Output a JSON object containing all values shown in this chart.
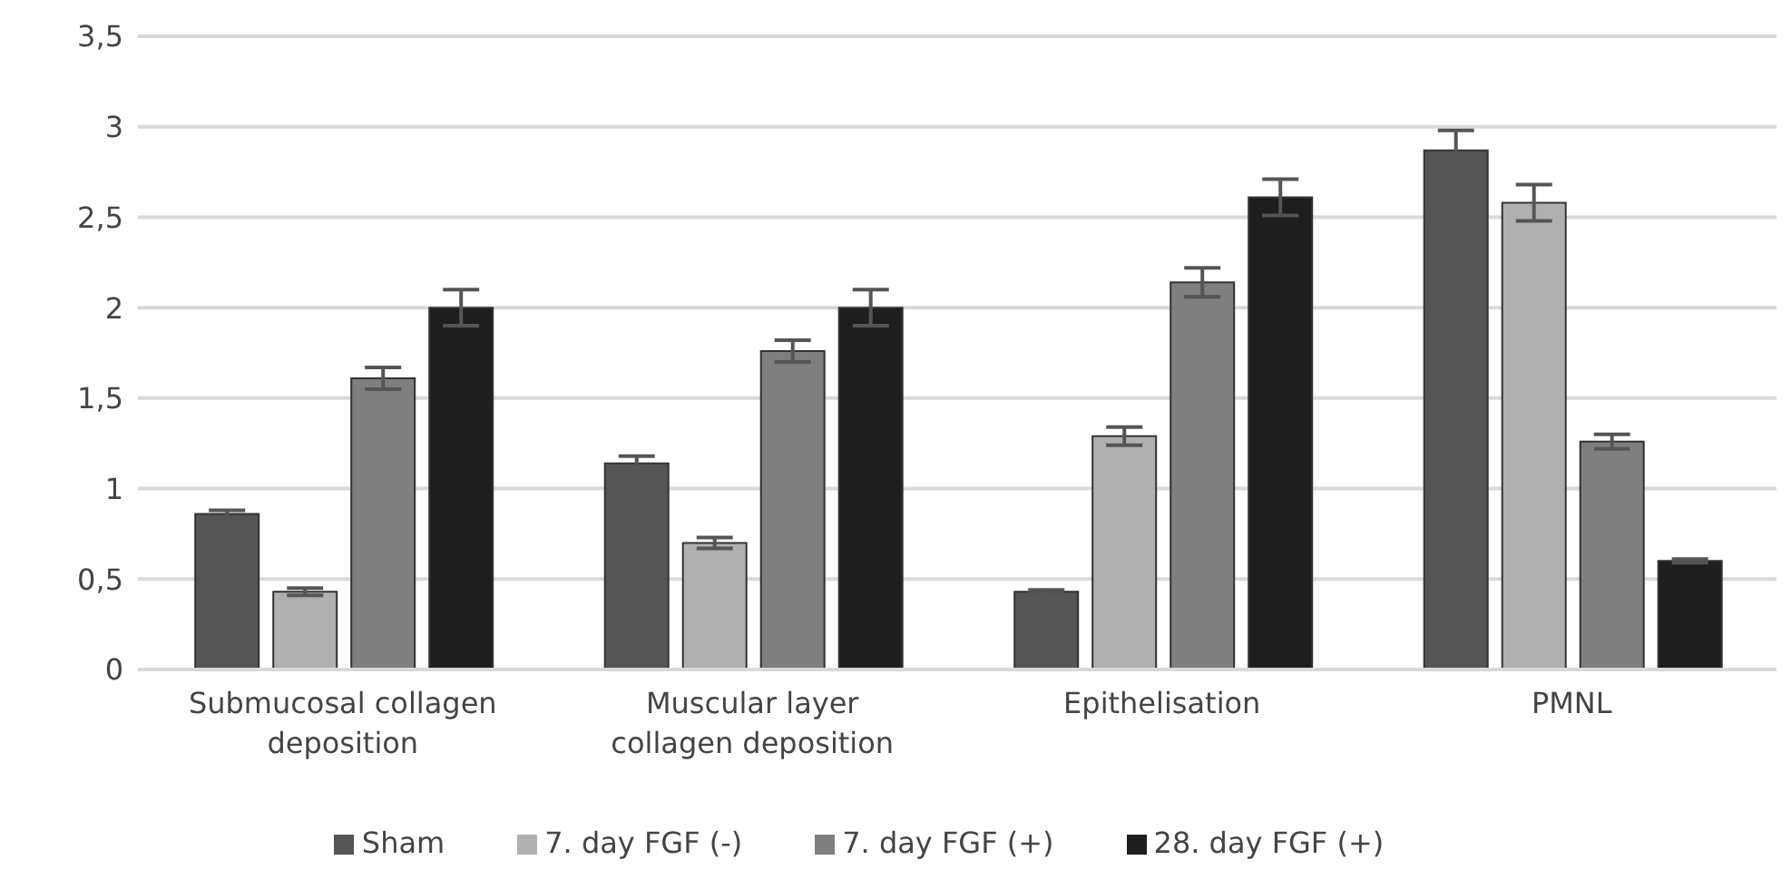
{
  "chart_data": {
    "type": "bar",
    "categories": [
      "Submucosal collagen deposition",
      "Muscular layer collagen deposition",
      "Epithelisation",
      "PMNL"
    ],
    "series": [
      {
        "name": "Sham",
        "color": "#555555",
        "values": [
          0.86,
          1.14,
          0.43,
          2.87
        ],
        "errors": [
          0.02,
          0.04,
          0.01,
          0.11
        ]
      },
      {
        "name": "7. day FGF (-)",
        "color": "#b0b0b0",
        "values": [
          0.43,
          0.7,
          1.29,
          2.58
        ],
        "errors": [
          0.02,
          0.03,
          0.05,
          0.1
        ]
      },
      {
        "name": "7. day FGF (+)",
        "color": "#7f7f7f",
        "values": [
          1.61,
          1.76,
          2.14,
          1.26
        ],
        "errors": [
          0.06,
          0.06,
          0.08,
          0.04
        ]
      },
      {
        "name": "28. day FGF (+)",
        "color": "#1e1e1e",
        "values": [
          2.0,
          2.0,
          2.61,
          0.6
        ],
        "errors": [
          0.1,
          0.1,
          0.1,
          0.01
        ]
      }
    ],
    "ylim": [
      0,
      3.5
    ],
    "yticks": [
      0,
      {
        "value": 0.5,
        "label": "0,5"
      },
      1,
      {
        "value": 1.5,
        "label": "1,5"
      },
      2,
      {
        "value": 2.5,
        "label": "2,5"
      },
      3,
      {
        "value": 3.5,
        "label": "3,5"
      }
    ],
    "grid": "y",
    "legend": "bottom"
  }
}
